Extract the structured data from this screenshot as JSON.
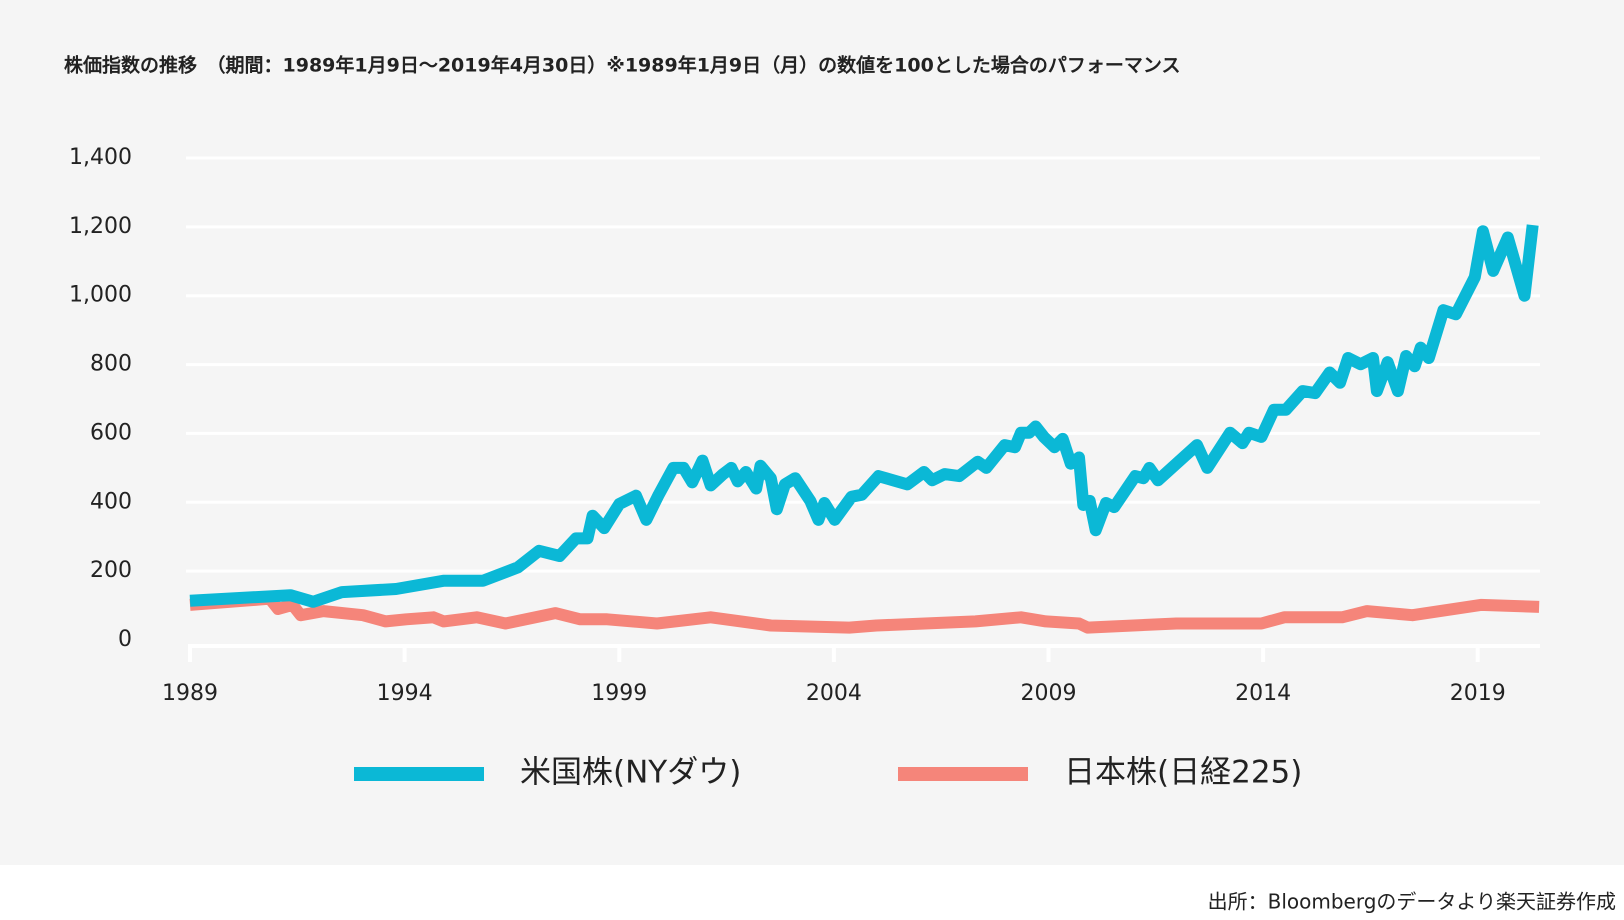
{
  "chart_data": {
    "type": "line",
    "title": "株価指数の推移　（期間：1989年1月9日～2019年4月30日）※1989年1月9日（月）の数値を100とした場合のパフォーマンス",
    "source": "出所：Bloombergのデータより楽天証券作成",
    "xlim": [
      1989,
      2020.45
    ],
    "xticks": [
      1989,
      1994,
      1999,
      2004,
      2009,
      2014,
      2019
    ],
    "ylim": [
      0,
      1400
    ],
    "yticks": [
      0,
      200,
      400,
      600,
      800,
      {
        "value": 1000,
        "label": "1,000"
      },
      {
        "value": 1200,
        "label": "1,200"
      },
      {
        "value": 1400,
        "label": "1,400"
      }
    ],
    "grid": true,
    "legend": "bottom",
    "series": [
      {
        "name": "米国株(NYダウ)",
        "color": "#0bb8d6",
        "x": [
          1989.0,
          1991.34,
          1991.87,
          1992.54,
          1993.8,
          1994.9,
          1995.82,
          1996.64,
          1997.13,
          1997.61,
          1997.99,
          1998.26,
          1998.38,
          1998.65,
          1999.0,
          1999.39,
          1999.63,
          1999.92,
          2000.26,
          2000.5,
          2000.7,
          2000.94,
          2001.13,
          2001.42,
          2001.61,
          2001.76,
          2001.95,
          2002.19,
          2002.29,
          2002.53,
          2002.67,
          2002.86,
          2003.1,
          2003.45,
          2003.64,
          2003.78,
          2004.02,
          2004.41,
          2004.65,
          2005.04,
          2005.71,
          2006.1,
          2006.29,
          2006.58,
          2006.92,
          2007.35,
          2007.55,
          2007.98,
          2008.22,
          2008.36,
          2008.55,
          2008.7,
          2008.89,
          2009.14,
          2009.33,
          2009.52,
          2009.71,
          2009.81,
          2009.96,
          2010.1,
          2010.34,
          2010.53,
          2011.02,
          2011.21,
          2011.35,
          2011.55,
          2012.46,
          2012.7,
          2013.23,
          2013.52,
          2013.67,
          2013.96,
          2014.25,
          2014.53,
          2014.92,
          2015.21,
          2015.55,
          2015.79,
          2015.98,
          2016.27,
          2016.56,
          2016.65,
          2016.9,
          2017.14,
          2017.33,
          2017.53,
          2017.67,
          2017.86,
          2018.2,
          2018.49,
          2018.93,
          2019.12,
          2019.36,
          2019.7,
          2020.09,
          2020.28
        ],
        "values": [
          114,
          130,
          111,
          139,
          148,
          172,
          172,
          211,
          259,
          244,
          295,
          295,
          361,
          325,
          395,
          419,
          349,
          422,
          500,
          500,
          458,
          521,
          449,
          482,
          500,
          461,
          488,
          440,
          506,
          470,
          380,
          452,
          470,
          404,
          349,
          398,
          349,
          416,
          422,
          476,
          452,
          488,
          464,
          482,
          476,
          518,
          500,
          566,
          560,
          602,
          602,
          620,
          590,
          560,
          584,
          512,
          530,
          392,
          404,
          319,
          398,
          386,
          476,
          470,
          500,
          464,
          566,
          500,
          602,
          572,
          602,
          590,
          669,
          669,
          723,
          717,
          777,
          747,
          819,
          801,
          819,
          723,
          807,
          723,
          825,
          795,
          849,
          819,
          958,
          946,
          1054,
          1187,
          1072,
          1169,
          1000,
          1205
        ]
      },
      {
        "name": "日本株(日経225)",
        "color": "#f5857a",
        "x": [
          1989.0,
          1990.86,
          1991.05,
          1991.39,
          1991.58,
          1992.11,
          1993.03,
          1993.56,
          1994.04,
          1994.67,
          1994.91,
          1995.68,
          1996.35,
          1997.51,
          1998.09,
          1998.72,
          1999.88,
          2001.13,
          2002.53,
          2004.36,
          2004.99,
          2007.3,
          2008.36,
          2008.94,
          2009.71,
          2009.91,
          2011.98,
          2013.96,
          2014.49,
          2015.84,
          2016.42,
          2017.48,
          2019.07,
          2020.43
        ],
        "values": [
          102,
          120,
          90,
          102,
          72,
          84,
          72,
          54,
          60,
          66,
          54,
          66,
          48,
          78,
          60,
          60,
          48,
          66,
          42,
          36,
          42,
          54,
          66,
          54,
          48,
          36,
          48,
          48,
          66,
          66,
          84,
          72,
          102,
          96
        ]
      }
    ]
  }
}
